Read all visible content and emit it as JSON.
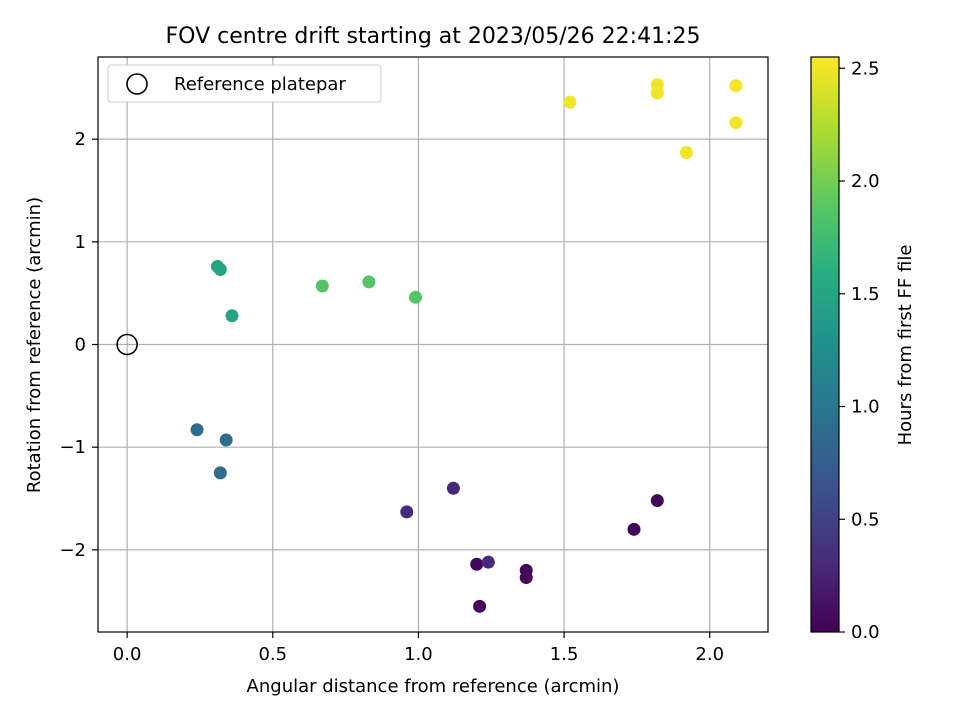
{
  "chart_data": {
    "type": "scatter",
    "title": "FOV centre drift starting at 2023/05/26 22:41:25",
    "xlabel": "Angular distance from reference (arcmin)",
    "ylabel": "Rotation from reference (arcmin)",
    "xlim": [
      -0.1,
      2.2
    ],
    "ylim": [
      -2.8,
      2.8
    ],
    "xticks": [
      0.0,
      0.5,
      1.0,
      1.5,
      2.0
    ],
    "xtick_labels": [
      "0.0",
      "0.5",
      "1.0",
      "1.5",
      "2.0"
    ],
    "yticks": [
      -2,
      -1,
      0,
      1,
      2
    ],
    "ytick_labels": [
      "−2",
      "−1",
      "0",
      "1",
      "2"
    ],
    "grid": true,
    "legend": {
      "placement": "top-left",
      "entries": [
        "Reference platepar"
      ]
    },
    "reference_point": {
      "x": 0.0,
      "y": 0.0
    },
    "colorbar": {
      "label": "Hours from first FF file",
      "range": [
        0.0,
        2.55
      ],
      "ticks": [
        0.0,
        0.5,
        1.0,
        1.5,
        2.0,
        2.5
      ],
      "tick_labels": [
        "0.0",
        "0.5",
        "1.0",
        "1.5",
        "2.0",
        "2.5"
      ],
      "colormap": "viridis"
    },
    "points": [
      {
        "x": 1.82,
        "y": -1.52,
        "c": 0.05
      },
      {
        "x": 1.74,
        "y": -1.8,
        "c": 0.05
      },
      {
        "x": 1.37,
        "y": -2.2,
        "c": 0.05
      },
      {
        "x": 1.37,
        "y": -2.27,
        "c": 0.05
      },
      {
        "x": 1.2,
        "y": -2.14,
        "c": 0.05
      },
      {
        "x": 1.21,
        "y": -2.55,
        "c": 0.05
      },
      {
        "x": 1.24,
        "y": -2.12,
        "c": 0.3
      },
      {
        "x": 1.12,
        "y": -1.4,
        "c": 0.3
      },
      {
        "x": 0.96,
        "y": -1.63,
        "c": 0.3
      },
      {
        "x": 0.24,
        "y": -0.83,
        "c": 0.9
      },
      {
        "x": 0.34,
        "y": -0.93,
        "c": 0.9
      },
      {
        "x": 0.32,
        "y": -1.25,
        "c": 0.9
      },
      {
        "x": 0.31,
        "y": 0.76,
        "c": 1.5
      },
      {
        "x": 0.32,
        "y": 0.73,
        "c": 1.5
      },
      {
        "x": 0.36,
        "y": 0.28,
        "c": 1.5
      },
      {
        "x": 0.67,
        "y": 0.57,
        "c": 1.85
      },
      {
        "x": 0.83,
        "y": 0.61,
        "c": 1.85
      },
      {
        "x": 0.99,
        "y": 0.46,
        "c": 1.85
      },
      {
        "x": 1.52,
        "y": 2.36,
        "c": 2.5
      },
      {
        "x": 1.82,
        "y": 2.53,
        "c": 2.5
      },
      {
        "x": 1.82,
        "y": 2.45,
        "c": 2.5
      },
      {
        "x": 2.09,
        "y": 2.52,
        "c": 2.5
      },
      {
        "x": 2.09,
        "y": 2.16,
        "c": 2.5
      },
      {
        "x": 1.92,
        "y": 1.87,
        "c": 2.5
      }
    ]
  }
}
